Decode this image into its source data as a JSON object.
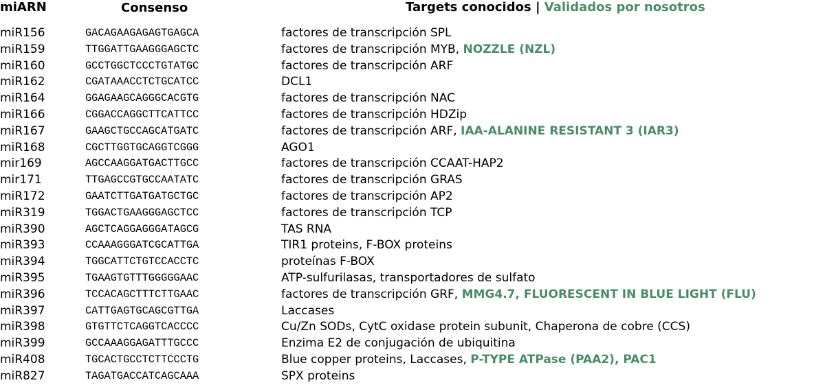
{
  "header": {
    "mirna": "miARN",
    "consenso": "Consenso",
    "targets": "Targets conocidos",
    "separator": " | ",
    "validated": "Validados por nosotros"
  },
  "colors": {
    "validated": "#4a8b68"
  },
  "rows": [
    {
      "name": "miR156",
      "seq": "GACAGAAGAGAGTGAGCA",
      "targets": "factores de transcripción SPL",
      "validated": ""
    },
    {
      "name": "miR159",
      "seq": "TTGGATTGAAGGGAGCTC",
      "targets": "factores de transcripción MYB, ",
      "validated": "NOZZLE (NZL)"
    },
    {
      "name": "miR160",
      "seq": "GCCTGGCTCCCTGTATGC",
      "targets": "factores de transcripción ARF",
      "validated": ""
    },
    {
      "name": "miR162",
      "seq": "CGATAAACCTCTGCATCC",
      "targets": "DCL1",
      "validated": ""
    },
    {
      "name": "miR164",
      "seq": "GGAGAAGCAGGGCACGTG",
      "targets": "factores de transcripción NAC",
      "validated": ""
    },
    {
      "name": "miR166",
      "seq": "CGGACCAGGCTTCATTCC",
      "targets": "factores de transcripción HDZip",
      "validated": ""
    },
    {
      "name": "miR167",
      "seq": "GAAGCTGCCAGCATGATC",
      "targets": "factores de transcripción ARF, ",
      "validated": "IAA-ALANINE RESISTANT 3 (IAR3)"
    },
    {
      "name": "miR168",
      "seq": "CGCTTGGTGCAGGTCGGG",
      "targets": "AGO1",
      "validated": ""
    },
    {
      "name": "mir169",
      "seq": "AGCCAAGGATGACTTGCC",
      "targets": "factores de transcripción CCAAT-HAP2",
      "validated": ""
    },
    {
      "name": "mir171",
      "seq": "TTGAGCCGTGCCAATATC",
      "targets": "factores de transcripción GRAS",
      "validated": ""
    },
    {
      "name": "miR172",
      "seq": "GAATCTTGATGATGCTGC",
      "targets": "factores de transcripción AP2",
      "validated": ""
    },
    {
      "name": "miR319",
      "seq": "TGGACTGAAGGGAGCTCC",
      "targets": "factores de transcripción TCP",
      "validated": ""
    },
    {
      "name": "miR390",
      "seq": "AGCTCAGGAGGGATAGCG",
      "targets": "TAS RNA",
      "validated": ""
    },
    {
      "name": "miR393",
      "seq": "CCAAAGGGATCGCATTGA",
      "targets": "TIR1 proteins, F-BOX proteins",
      "validated": ""
    },
    {
      "name": "miR394",
      "seq": "TGGCATTCTGTCCACCTC",
      "targets": "proteínas F-BOX",
      "validated": ""
    },
    {
      "name": "miR395",
      "seq": "TGAAGTGTTTGGGGGAAC",
      "targets": "ATP-sulfurilasas, transportadores de sulfato",
      "validated": ""
    },
    {
      "name": "miR396",
      "seq": "TCCACAGCTTTCTTGAAC",
      "targets": "factores de transcripción GRF, ",
      "validated": "MMG4.7, FLUORESCENT IN BLUE LIGHT (FLU)"
    },
    {
      "name": "miR397",
      "seq": "CATTGAGTGCAGCGTTGA",
      "targets": "Laccases",
      "validated": ""
    },
    {
      "name": "miR398",
      "seq": "GTGTTCTCAGGTCACCCC",
      "targets": "Cu/Zn SODs, CytC oxidase protein subunit, Chaperona de cobre (CCS)",
      "validated": ""
    },
    {
      "name": "miR399",
      "seq": "GCCAAAGGAGATTTGCCC",
      "targets": "Enzima E2 de conjugación de ubiquitina",
      "validated": ""
    },
    {
      "name": "miR408",
      "seq": "TGCACTGCCTCTTCCCTG",
      "targets": "Blue copper proteins, Laccases, ",
      "validated": "P-TYPE ATPase (PAA2), PAC1"
    },
    {
      "name": "miR827",
      "seq": "TAGATGACCATCAGCAAA",
      "targets": "SPX proteins",
      "validated": ""
    }
  ]
}
